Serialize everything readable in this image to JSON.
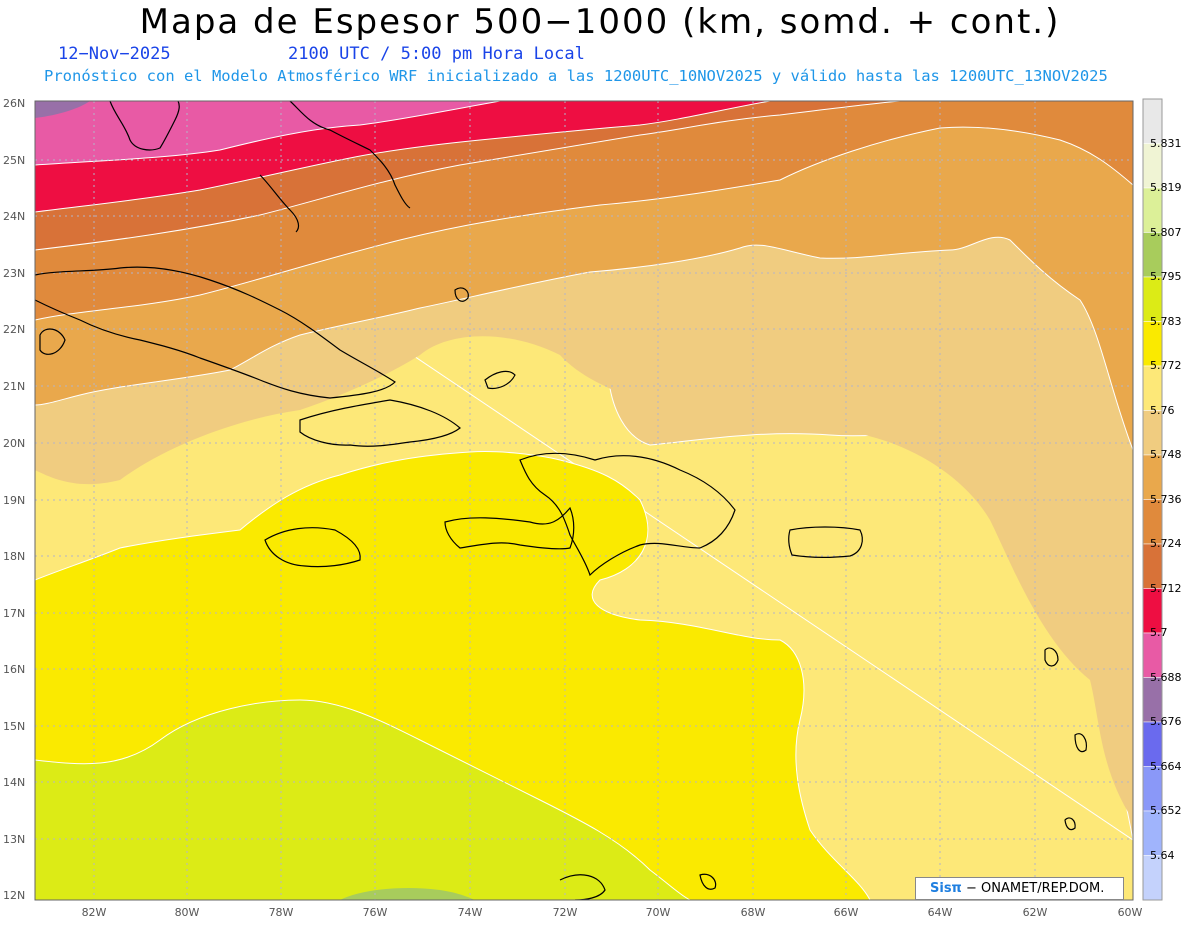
{
  "header": {
    "title": "Mapa de Espesor 500−1000 (km, somd. + cont.)",
    "date": "12−Nov−2025",
    "time": "2100 UTC / 5:00 pm Hora Local",
    "forecast": "Pronóstico con el Modelo Atmosférico WRF inicializado a las 1200UTC_10NOV2025 y válido hasta las  1200UTC_13NOV2025"
  },
  "axes": {
    "lat_labels": [
      "26N",
      "25N",
      "24N",
      "23N",
      "22N",
      "21N",
      "20N",
      "19N",
      "18N",
      "17N",
      "16N",
      "15N",
      "14N",
      "13N",
      "12N"
    ],
    "lon_labels": [
      "82W",
      "80W",
      "78W",
      "76W",
      "74W",
      "72W",
      "70W",
      "68W",
      "66W",
      "64W",
      "62W",
      "60W"
    ]
  },
  "colorbar": {
    "labels": [
      "5.831",
      "5.819",
      "5.807",
      "5.795",
      "5.783",
      "5.772",
      "5.76",
      "5.748",
      "5.736",
      "5.724",
      "5.712",
      "5.7",
      "5.688",
      "5.676",
      "5.664",
      "5.652",
      "5.64"
    ],
    "colors_top_to_bottom": [
      "#e8e8e8",
      "#f0f4d4",
      "#dcf098",
      "#a8cc5c",
      "#dceb16",
      "#faea00",
      "#fde878",
      "#f0cc80",
      "#e9a84c",
      "#e08a3c",
      "#d87238",
      "#ee0e42",
      "#e85aa5",
      "#9870a8",
      "#6a6aee",
      "#8a98f8",
      "#a0b4fc",
      "#c4d2fc"
    ]
  },
  "credit": {
    "logo": "Sisπ",
    "org": " − ONAMET/REP.DOM."
  }
}
